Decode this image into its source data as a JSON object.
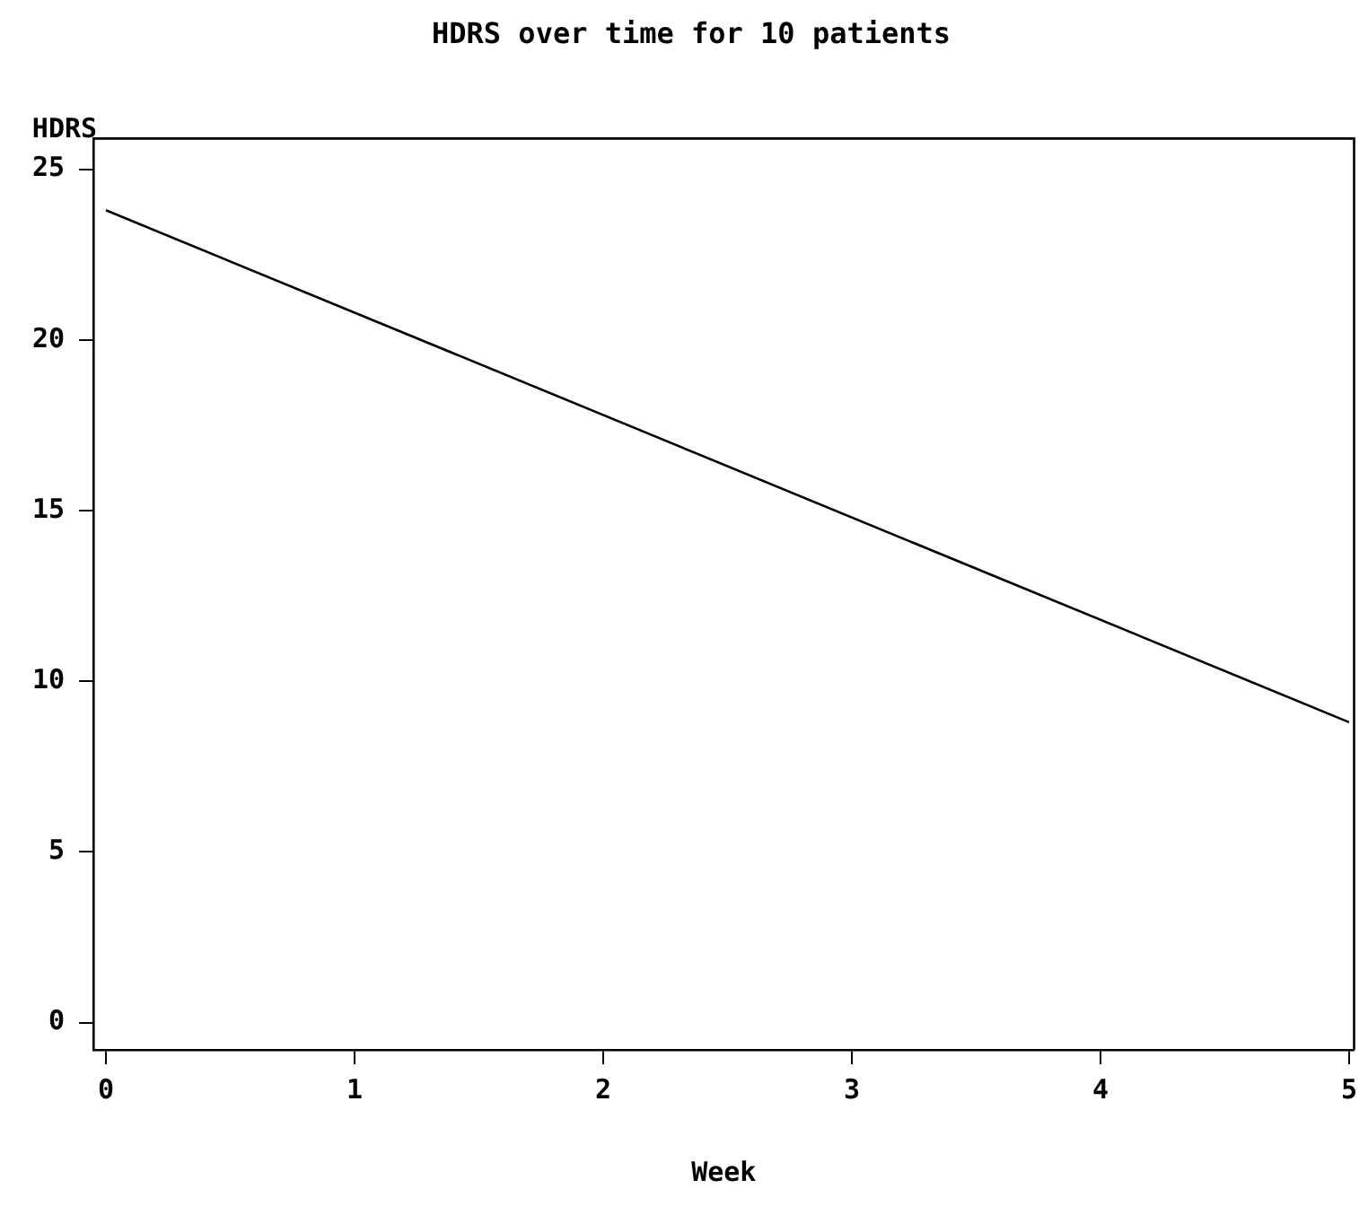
{
  "chart_data": {
    "type": "line",
    "title": "HDRS over time for 10 patients",
    "xlabel": "Week",
    "ylabel": "HDRS",
    "x": [
      0,
      5
    ],
    "series": [
      {
        "color": "#000000",
        "values": [
          23.8,
          8.8
        ]
      }
    ],
    "xlim": [
      -0.05,
      5.02
    ],
    "ylim": [
      -0.8,
      25.9
    ],
    "xticks": [
      0,
      1,
      2,
      3,
      4,
      5
    ],
    "yticks": [
      0,
      5,
      10,
      15,
      20,
      25
    ],
    "grid": false,
    "legend": false,
    "marker": "none",
    "line_style": "solid"
  }
}
